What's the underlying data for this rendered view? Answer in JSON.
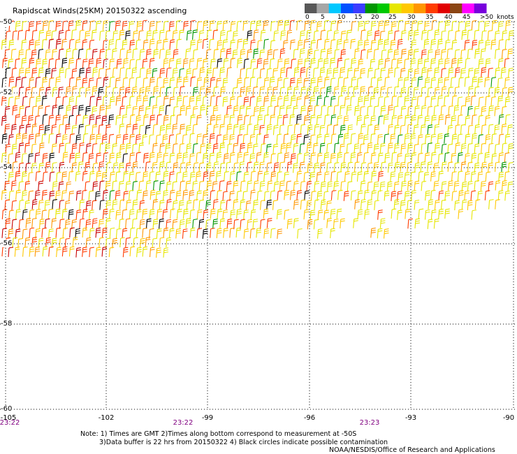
{
  "title": "Rapidscat Winds(25KM) 20150322 ascending",
  "legend": {
    "colors": [
      "#585858",
      "#a6a6a6",
      "#00c8ff",
      "#0050ff",
      "#3c3cff",
      "#009600",
      "#00c800",
      "#e6e600",
      "#ffc800",
      "#ff9600",
      "#ff3c00",
      "#e10000",
      "#8b4513",
      "#ff00ff",
      "#7800dc"
    ],
    "labels": [
      "0",
      "5",
      "10",
      "15",
      "20",
      "25",
      "30",
      "35",
      "40",
      "45",
      ">50"
    ],
    "unit": "knots"
  },
  "lat_labels": [
    "-50",
    "-52",
    "-54",
    "-56",
    "-58",
    "-60"
  ],
  "lon_labels": [
    "-105",
    "-102",
    "-99",
    "-96",
    "-93",
    "-90"
  ],
  "time_labels": [
    "23:22",
    "23:22",
    "23:23"
  ],
  "notes": {
    "line1": "Note: 1) Times are GMT 2)Times along bottom correspond to measurement at -50S",
    "line2": "3)Data buffer is 22 hrs from 20150322 4) Black circles indicate possible contamination",
    "line3": "NOAA/NESDIS/Office of Research and Applications"
  },
  "barb_colors": {
    "yellow": "#e6e600",
    "gold": "#ffc800",
    "orange": "#ff9600",
    "red": "#ff3c00",
    "darkred": "#c80000",
    "green": "#009600",
    "black": "#000000"
  }
}
